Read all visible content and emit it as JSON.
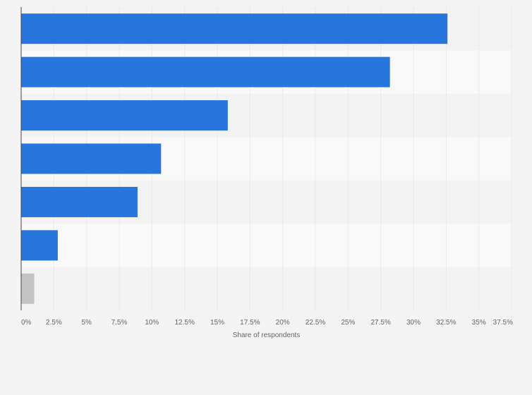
{
  "chart_data": {
    "type": "bar",
    "orientation": "horizontal",
    "categories": [
      "",
      "",
      "",
      "",
      "",
      "",
      ""
    ],
    "values": [
      32.6,
      28.2,
      15.8,
      10.7,
      8.9,
      2.8,
      1.0
    ],
    "bar_colors": [
      "#2876dd",
      "#2876dd",
      "#2876dd",
      "#2876dd",
      "#2876dd",
      "#2876dd",
      "#c4c4c4"
    ],
    "xlabel": "Share of respondents",
    "ylabel": "",
    "xlim": [
      0,
      37.5
    ],
    "xticks": [
      0,
      2.5,
      5,
      7.5,
      10,
      12.5,
      15,
      17.5,
      20,
      22.5,
      25,
      27.5,
      30,
      32.5,
      35,
      37.5
    ],
    "xtick_labels": [
      "0%",
      "2.5%",
      "5%",
      "7.5%",
      "10%",
      "12.5%",
      "15%",
      "17.5%",
      "20%",
      "22.5%",
      "25%",
      "27.5%",
      "30%",
      "32.5%",
      "35%",
      "37.5%"
    ],
    "grid": true,
    "legend": "none"
  },
  "colors": {
    "background": "#f4f4f4",
    "row_band_light": "#f9f9f9",
    "row_band_dark": "#f3f3f3",
    "gridline": "#dedede",
    "axis": "#444444",
    "tick_text": "#666666"
  }
}
